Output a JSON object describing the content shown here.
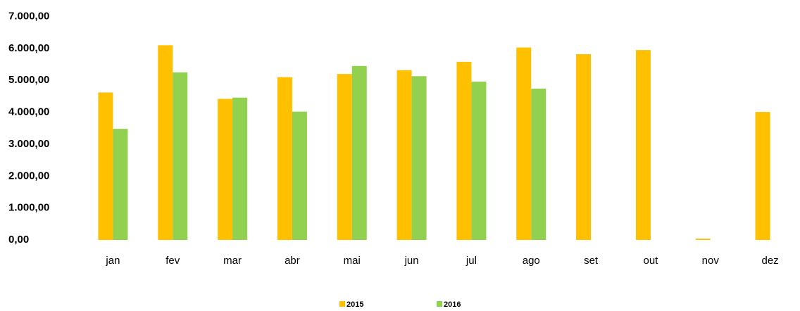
{
  "chart_data": {
    "type": "bar",
    "categories": [
      "jan",
      "fev",
      "mar",
      "abr",
      "mai",
      "jun",
      "jul",
      "ago",
      "set",
      "out",
      "nov",
      "dez"
    ],
    "series": [
      {
        "name": "2015",
        "color": "#ffc000",
        "values": [
          4620,
          6100,
          4420,
          5100,
          5200,
          5320,
          5580,
          6030,
          5820,
          5950,
          40,
          4010
        ]
      },
      {
        "name": "2016",
        "color": "#92d050",
        "values": [
          3480,
          5250,
          4460,
          4020,
          5450,
          5130,
          4960,
          4740,
          null,
          null,
          null,
          null
        ]
      }
    ],
    "ylim": [
      0,
      7000
    ],
    "yticks": [
      {
        "value": 0,
        "label": "0,00"
      },
      {
        "value": 1000,
        "label": "1.000,00"
      },
      {
        "value": 2000,
        "label": "2.000,00"
      },
      {
        "value": 3000,
        "label": "3.000,00"
      },
      {
        "value": 4000,
        "label": "4.000,00"
      },
      {
        "value": 5000,
        "label": "5.000,00"
      },
      {
        "value": 6000,
        "label": "6.000,00"
      },
      {
        "value": 7000,
        "label": "7.000,00"
      }
    ],
    "grid": false,
    "legend": "bottom"
  }
}
